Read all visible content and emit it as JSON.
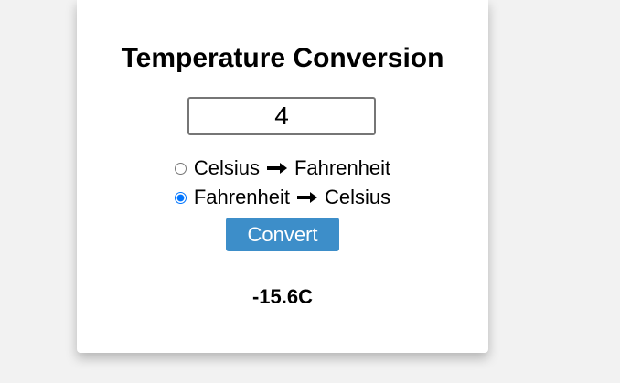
{
  "card": {
    "title": "Temperature Conversion",
    "input_value": "4",
    "options": [
      {
        "from": "Celsius",
        "to": "Fahrenheit",
        "selected": false
      },
      {
        "from": "Fahrenheit",
        "to": "Celsius",
        "selected": true
      }
    ],
    "arrow_icon": "right-arrow-icon",
    "convert_label": "Convert",
    "result": "-15.6C"
  },
  "colors": {
    "button_bg": "#3d8ec9",
    "radio_accent": "#0075ff"
  }
}
